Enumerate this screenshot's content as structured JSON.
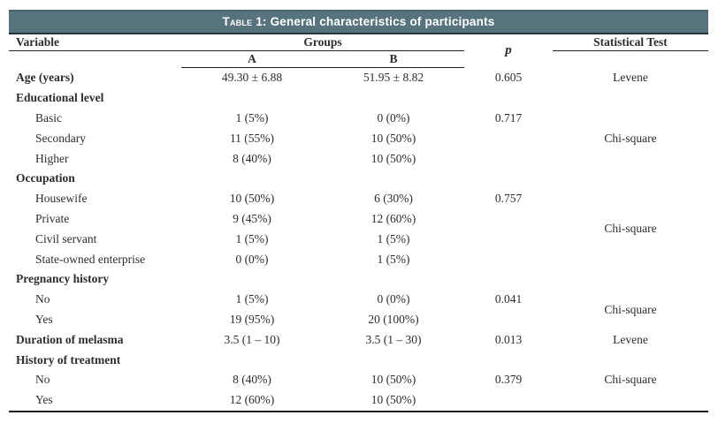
{
  "colors": {
    "title_bar_bg": "#57747E",
    "title_bar_text": "#FFFFFF",
    "rule": "#1F1F1F",
    "body_text": "#2D2D2D"
  },
  "title_bar": {
    "prefix": "Table 1:",
    "title": "General characteristics of participants"
  },
  "header": {
    "variable": "Variable",
    "groups": "Groups",
    "group_a": "A",
    "group_b": "B",
    "p": "p",
    "statistical_test": "Statistical Test"
  },
  "rows": [
    {
      "label": "Age (years)",
      "bold": true,
      "a": "49.30 ± 6.88",
      "b": "51.95 ± 8.82",
      "p": {
        "text": "0.605",
        "rowspan": 1
      },
      "test": {
        "text": "Levene",
        "rowspan": 1
      }
    },
    {
      "label": "Educational level",
      "bold": true,
      "section": true
    },
    {
      "label": "Basic",
      "indent": true,
      "a": "1 (5%)",
      "b": "0 (0%)",
      "p": {
        "text": "0.717",
        "rowspan": 3,
        "valign": "top"
      },
      "test": {
        "text": "Chi-square",
        "rowspan": 3,
        "valign": "middle"
      }
    },
    {
      "label": "Secondary",
      "indent": true,
      "a": "11 (55%)",
      "b": "10 (50%)"
    },
    {
      "label": "Higher",
      "indent": true,
      "a": "8 (40%)",
      "b": "10 (50%)"
    },
    {
      "label": "Occupation",
      "bold": true,
      "section": true
    },
    {
      "label": "Housewife",
      "indent": true,
      "a": "10 (50%)",
      "b": "6 (30%)",
      "p": {
        "text": "0.757",
        "rowspan": 4,
        "valign": "top"
      },
      "test": {
        "text": "Chi-square",
        "rowspan": 4,
        "valign": "middle"
      }
    },
    {
      "label": "Private",
      "indent": true,
      "a": "9 (45%)",
      "b": "12 (60%)"
    },
    {
      "label": "Civil servant",
      "indent": true,
      "a": "1 (5%)",
      "b": "1 (5%)"
    },
    {
      "label": "State-owned enterprise",
      "indent": true,
      "a": "0 (0%)",
      "b": "1 (5%)"
    },
    {
      "label": "Pregnancy history",
      "bold": true,
      "section": true
    },
    {
      "label": "No",
      "indent": true,
      "a": "1 (5%)",
      "b": "0 (0%)",
      "p": {
        "text": "0.041",
        "rowspan": 2,
        "valign": "top"
      },
      "test": {
        "text": "Chi-square",
        "rowspan": 2,
        "valign": "middle"
      }
    },
    {
      "label": "Yes",
      "indent": true,
      "a": "19 (95%)",
      "b": "20 (100%)"
    },
    {
      "label": "Duration of melasma",
      "bold": true,
      "a": "3.5 (1 – 10)",
      "b": "3.5 (1 – 30)",
      "p": {
        "text": "0.013",
        "rowspan": 1
      },
      "test": {
        "text": "Levene",
        "rowspan": 1
      }
    },
    {
      "label": "History of treatment",
      "bold": true,
      "section": true
    },
    {
      "label": "No",
      "indent": true,
      "a": "8 (40%)",
      "b": "10 (50%)",
      "p": {
        "text": "0.379",
        "rowspan": 2,
        "valign": "top"
      },
      "test": {
        "text": "Chi-square",
        "rowspan": 2,
        "valign": "top"
      }
    },
    {
      "label": "Yes",
      "indent": true,
      "a": "12 (60%)",
      "b": "10 (50%)"
    }
  ]
}
